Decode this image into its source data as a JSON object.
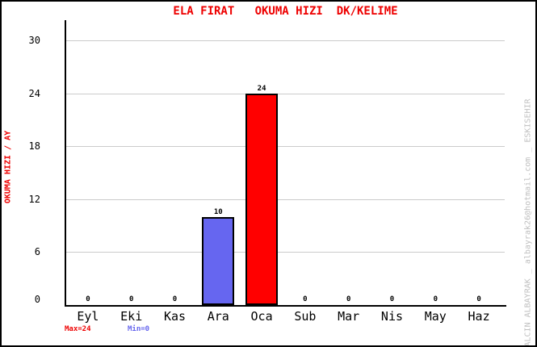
{
  "title": "ELA FIRAT   OKUMA HIZI  DK/KELIME",
  "y_axis_title": "OKUMA HIZI / AY",
  "watermark": "YALCIN ALBAYRAK _ albayrak26@hotmail.com _ ESKISEHIR",
  "footer": {
    "max_label": "Max=24",
    "min_label": "Min=0"
  },
  "colors": {
    "title_text": "#EE0000",
    "y_axis_title_text": "#EE0000",
    "bar_blue": "#6666F0",
    "bar_red": "#FF0000",
    "bar_border": "#000000",
    "gridline": "#CBCBCB",
    "axis": "#000000",
    "max_text": "#EE0000",
    "min_text": "#6666EE",
    "watermark_text": "#C0C0C0",
    "background": "#FFFFFF"
  },
  "chart_data": {
    "type": "bar",
    "title": "ELA FIRAT   OKUMA HIZI  DK/KELIME",
    "xlabel": "",
    "ylabel": "OKUMA HIZI / AY",
    "categories": [
      "Eyl",
      "Eki",
      "Kas",
      "Ara",
      "Oca",
      "Sub",
      "Mar",
      "Nis",
      "May",
      "Haz"
    ],
    "values": [
      0,
      0,
      0,
      10,
      24,
      0,
      0,
      0,
      0,
      0
    ],
    "bar_colors": [
      null,
      null,
      null,
      "#6666F0",
      "#FF0000",
      null,
      null,
      null,
      null,
      null
    ],
    "value_labels": [
      "0",
      "0",
      "0",
      "10",
      "24",
      "0",
      "0",
      "0",
      "0",
      "0"
    ],
    "yticks": [
      0,
      6,
      12,
      18,
      24,
      30
    ],
    "ylim": [
      0,
      32
    ],
    "grid": "horizontal",
    "legend_position": "none",
    "annotations": {
      "max": "Max=24",
      "min": "Min=0"
    }
  }
}
